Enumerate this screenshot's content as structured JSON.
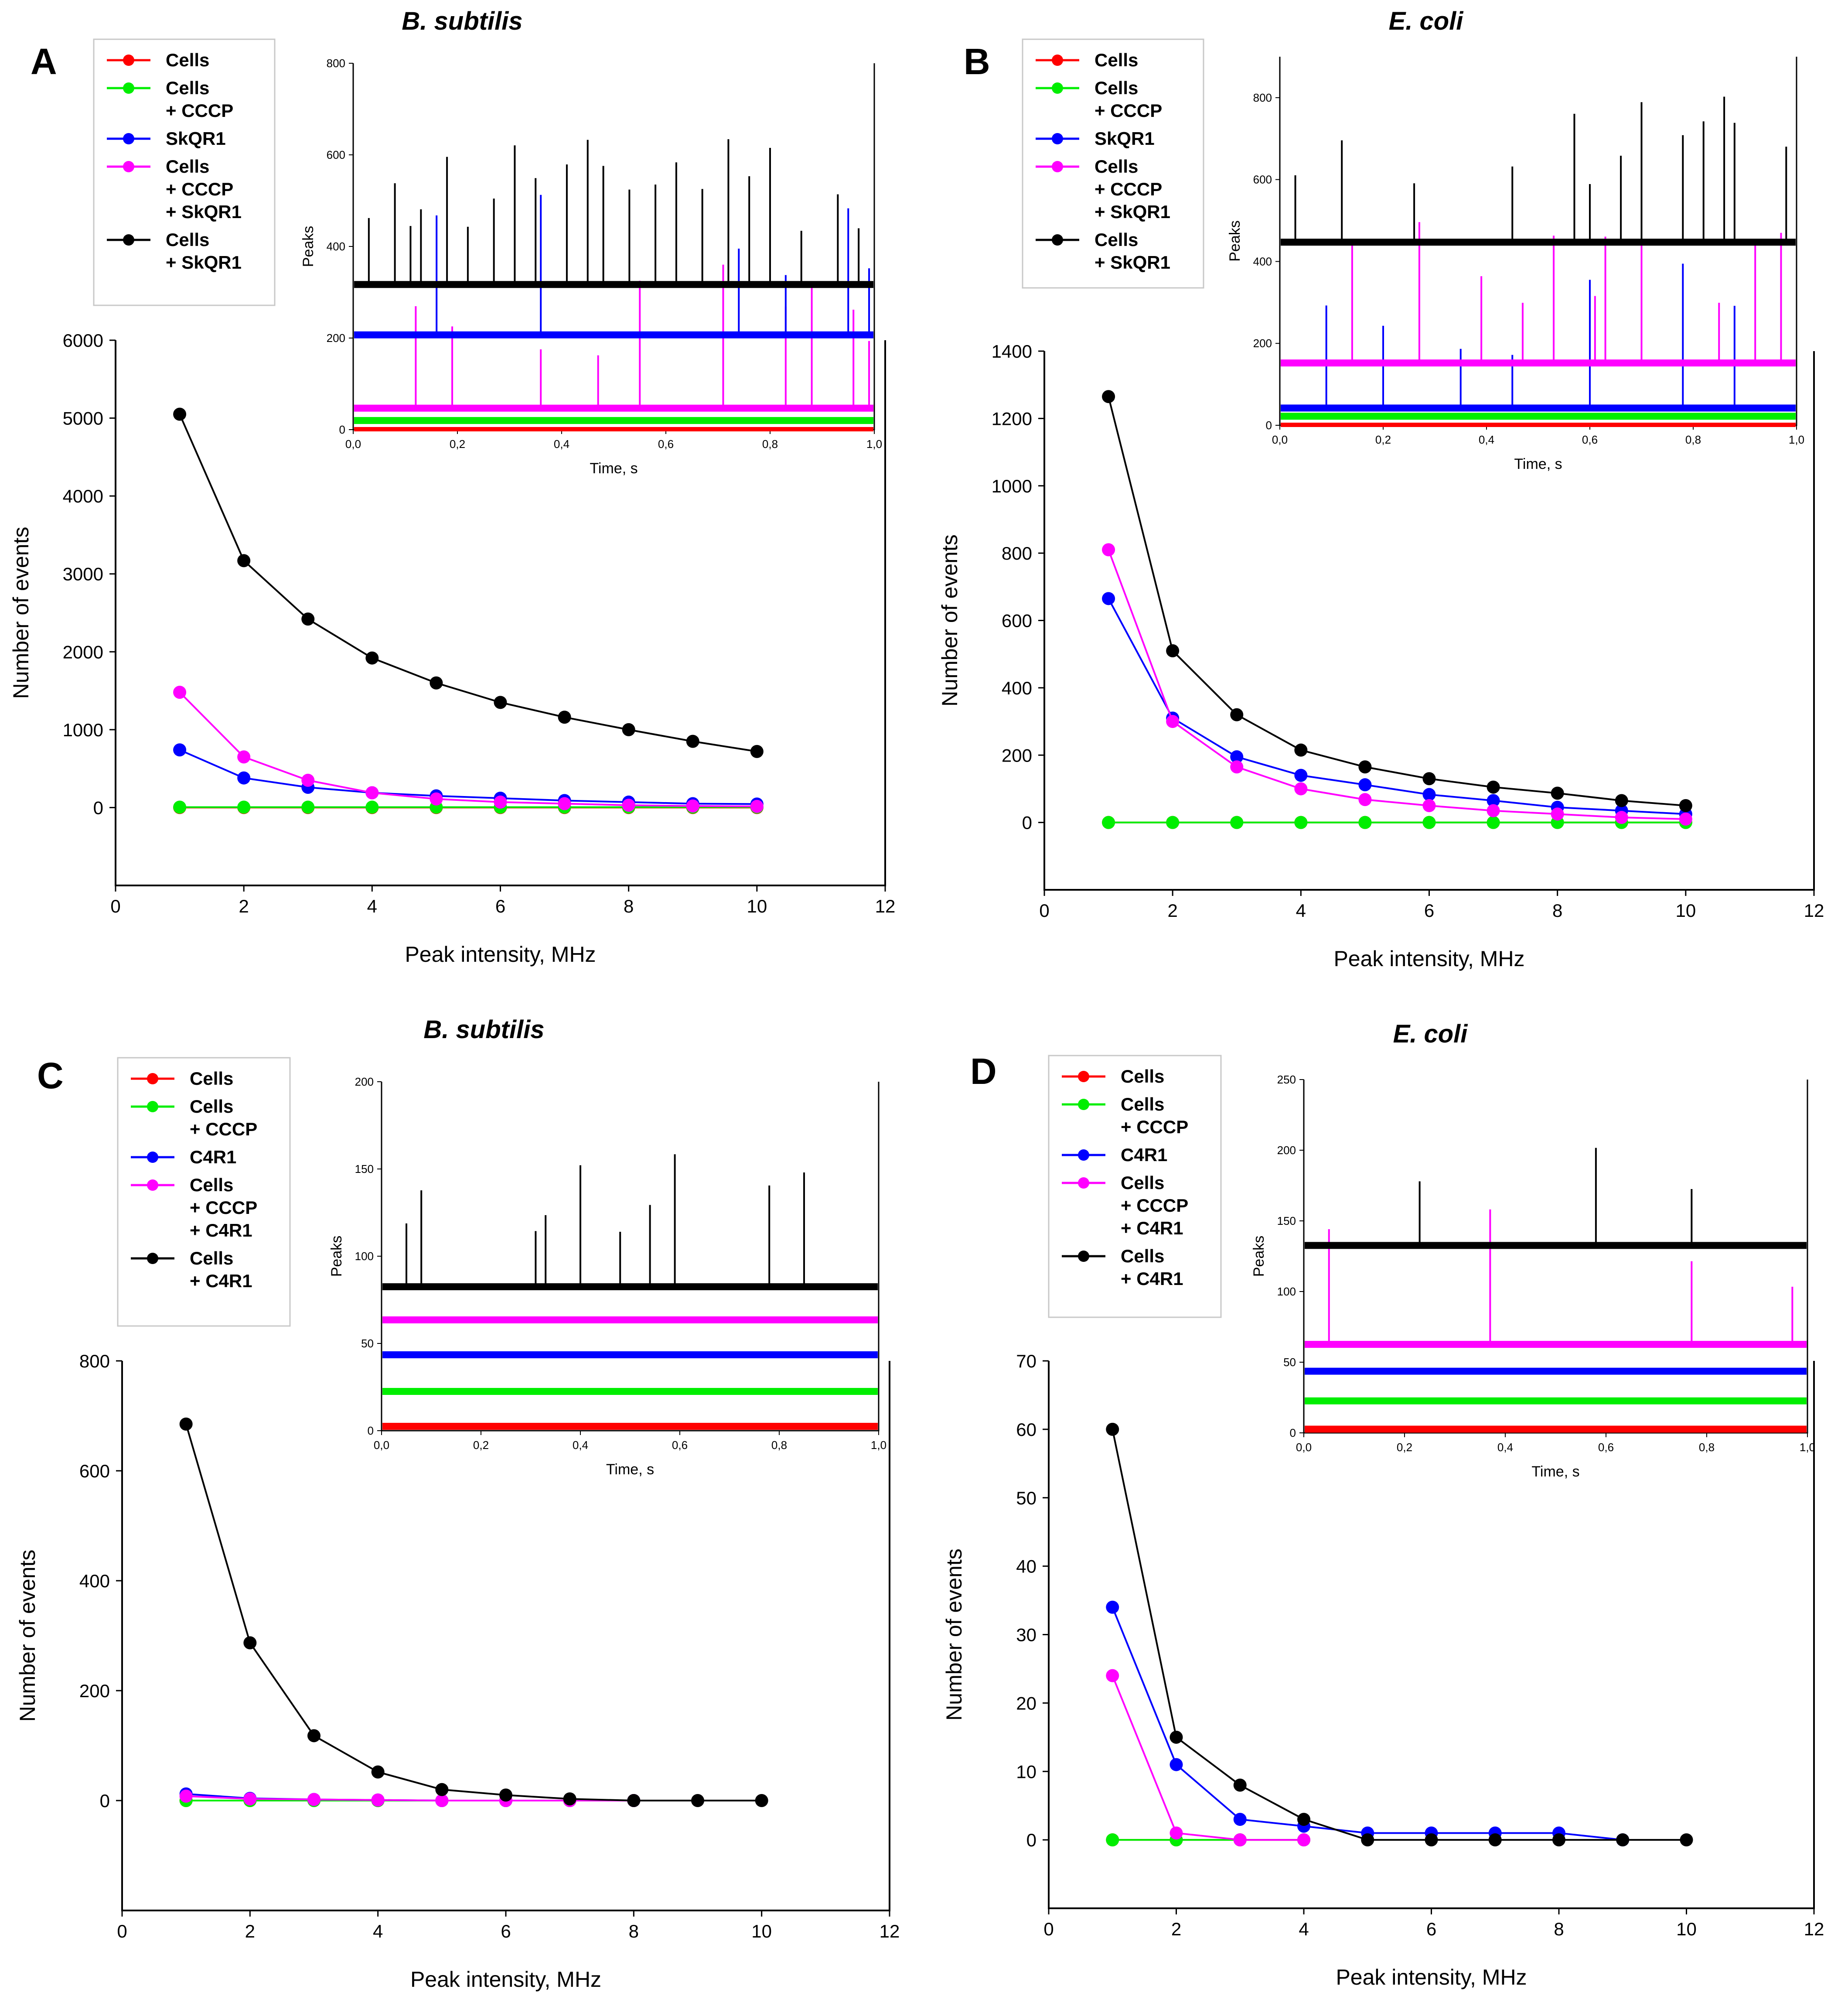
{
  "chart_data": [
    {
      "panel_label": "A",
      "title": "B. subtilis",
      "type": "line",
      "xlabel": "Peak intensity, MHz",
      "ylabel": "Number of events",
      "xlim": [
        0,
        12
      ],
      "ylim": [
        -1000,
        6000
      ],
      "xticks": [
        "0",
        "2",
        "4",
        "6",
        "8",
        "10",
        "12"
      ],
      "yticks": [
        "0",
        "1000",
        "2000",
        "3000",
        "4000",
        "5000",
        "6000"
      ],
      "legend": [
        "Cells",
        "Cells\n+ CCCP",
        "SkQR1",
        "Cells\n+ CCCP\n+ SkQR1",
        "Cells\n+ SkQR1"
      ],
      "series": [
        {
          "name": "Cells",
          "color": "#ff0000",
          "x": [
            1,
            2,
            3,
            4,
            5,
            6,
            7,
            8,
            9,
            10
          ],
          "values": [
            0,
            0,
            0,
            0,
            0,
            0,
            0,
            0,
            0,
            0
          ]
        },
        {
          "name": "Cells + CCCP",
          "color": "#00ee00",
          "x": [
            1,
            2,
            3,
            4,
            5,
            6,
            7,
            8,
            9,
            10
          ],
          "values": [
            5,
            5,
            5,
            5,
            5,
            5,
            5,
            5,
            5,
            5
          ]
        },
        {
          "name": "SkQR1",
          "color": "#0000ff",
          "x": [
            1,
            2,
            3,
            4,
            5,
            6,
            7,
            8,
            9,
            10
          ],
          "values": [
            740,
            380,
            260,
            190,
            150,
            120,
            90,
            70,
            50,
            45
          ]
        },
        {
          "name": "Cells + CCCP + SkQR1",
          "color": "#ff00ff",
          "x": [
            1,
            2,
            3,
            4,
            5,
            6,
            7,
            8,
            9,
            10
          ],
          "values": [
            1480,
            650,
            350,
            190,
            110,
            70,
            50,
            30,
            20,
            15
          ]
        },
        {
          "name": "Cells + SkQR1",
          "color": "#000000",
          "x": [
            1,
            2,
            3,
            4,
            5,
            6,
            7,
            8,
            9,
            10
          ],
          "values": [
            5050,
            3170,
            2420,
            1920,
            1600,
            1350,
            1160,
            1000,
            850,
            720
          ]
        }
      ],
      "inset": {
        "xlabel": "Time, s",
        "ylabel": "Peaks",
        "xlim": [
          0,
          1
        ],
        "ylim": [
          0,
          800
        ],
        "xticks": [
          "0,0",
          "0,2",
          "0,4",
          "0,6",
          "0,8",
          "1,0"
        ],
        "yticks": [
          "0",
          "200",
          "400",
          "600",
          "800"
        ],
        "traces": [
          {
            "name": "Cells",
            "color": "#ff0000",
            "baseline": 0,
            "spikes": []
          },
          {
            "name": "Cells + CCCP",
            "color": "#00ee00",
            "baseline": 18,
            "spikes": []
          },
          {
            "name": "Cells + CCCP + SkQR1",
            "color": "#ff00ff",
            "baseline": 45,
            "spikes": [
              0.12,
              0.19,
              0.36,
              0.47,
              0.55,
              0.71,
              0.83,
              0.88,
              0.96,
              0.99
            ]
          },
          {
            "name": "SkQR1",
            "color": "#0000ff",
            "baseline": 205,
            "spikes": [
              0.16,
              0.36,
              0.74,
              0.83,
              0.95,
              0.99
            ]
          },
          {
            "name": "Cells + SkQR1",
            "color": "#000000",
            "baseline": 315,
            "spikes": [
              0.03,
              0.08,
              0.11,
              0.13,
              0.18,
              0.22,
              0.27,
              0.31,
              0.35,
              0.41,
              0.45,
              0.48,
              0.53,
              0.58,
              0.62,
              0.67,
              0.72,
              0.76,
              0.8,
              0.86,
              0.93,
              0.97
            ]
          }
        ]
      }
    },
    {
      "panel_label": "B",
      "title": "E. coli",
      "type": "line",
      "xlabel": "Peak intensity, MHz",
      "ylabel": "Number of events",
      "xlim": [
        0,
        12
      ],
      "ylim": [
        -200,
        1400
      ],
      "xticks": [
        "0",
        "2",
        "4",
        "6",
        "8",
        "10",
        "12"
      ],
      "yticks": [
        "0",
        "200",
        "400",
        "600",
        "800",
        "1000",
        "1200",
        "1400"
      ],
      "legend": [
        "Cells",
        "Cells\n+ CCCP",
        "SkQR1",
        "Cells\n+ CCCP\n+ SkQR1",
        "Cells\n+ SkQR1"
      ],
      "series": [
        {
          "name": "Cells",
          "color": "#ff0000",
          "x": [
            1,
            2,
            3,
            4,
            5,
            6,
            7,
            8,
            9,
            10
          ],
          "values": [
            0,
            0,
            0,
            0,
            0,
            0,
            0,
            0,
            0,
            0
          ]
        },
        {
          "name": "Cells + CCCP",
          "color": "#00ee00",
          "x": [
            1,
            2,
            3,
            4,
            5,
            6,
            7,
            8,
            9,
            10
          ],
          "values": [
            0,
            0,
            0,
            0,
            0,
            0,
            0,
            0,
            0,
            0
          ]
        },
        {
          "name": "SkQR1",
          "color": "#0000ff",
          "x": [
            1,
            2,
            3,
            4,
            5,
            6,
            7,
            8,
            9,
            10
          ],
          "values": [
            665,
            310,
            195,
            140,
            112,
            83,
            65,
            45,
            35,
            25
          ]
        },
        {
          "name": "Cells + CCCP + SkQR1",
          "color": "#ff00ff",
          "x": [
            1,
            2,
            3,
            4,
            5,
            6,
            7,
            8,
            9,
            10
          ],
          "values": [
            810,
            300,
            165,
            100,
            68,
            50,
            35,
            25,
            15,
            10
          ]
        },
        {
          "name": "Cells + SkQR1",
          "color": "#000000",
          "x": [
            1,
            2,
            3,
            4,
            5,
            6,
            7,
            8,
            9,
            10
          ],
          "values": [
            1265,
            510,
            320,
            215,
            165,
            130,
            105,
            87,
            65,
            50
          ]
        }
      ],
      "inset": {
        "xlabel": "Time, s",
        "ylabel": "Peaks",
        "xlim": [
          0,
          1
        ],
        "ylim": [
          0,
          900
        ],
        "xticks": [
          "0,0",
          "0,2",
          "0,4",
          "0,6",
          "0,8",
          "1,0"
        ],
        "yticks": [
          "0",
          "200",
          "400",
          "600",
          "800"
        ],
        "traces": [
          {
            "name": "Cells",
            "color": "#ff0000",
            "baseline": 0,
            "spikes": []
          },
          {
            "name": "Cells + CCCP",
            "color": "#00ee00",
            "baseline": 20,
            "spikes": []
          },
          {
            "name": "SkQR1",
            "color": "#0000ff",
            "baseline": 40,
            "spikes": [
              0.09,
              0.2,
              0.35,
              0.45,
              0.6,
              0.78,
              0.88
            ]
          },
          {
            "name": "Cells + CCCP + SkQR1",
            "color": "#ff00ff",
            "baseline": 150,
            "spikes": [
              0.14,
              0.27,
              0.39,
              0.47,
              0.53,
              0.61,
              0.63,
              0.7,
              0.85,
              0.92,
              0.97
            ]
          },
          {
            "name": "Cells + SkQR1",
            "color": "#000000",
            "baseline": 445,
            "spikes": [
              0.03,
              0.12,
              0.26,
              0.45,
              0.57,
              0.6,
              0.66,
              0.7,
              0.78,
              0.82,
              0.86,
              0.88,
              0.98
            ]
          }
        ]
      }
    },
    {
      "panel_label": "C",
      "title": "B. subtilis",
      "type": "line",
      "xlabel": "Peak intensity, MHz",
      "ylabel": "Number of events",
      "xlim": [
        0,
        12
      ],
      "ylim": [
        -200,
        800
      ],
      "xticks": [
        "0",
        "2",
        "4",
        "6",
        "8",
        "10",
        "12"
      ],
      "yticks": [
        "0",
        "200",
        "400",
        "600",
        "800"
      ],
      "legend": [
        "Cells",
        "Cells\n+ CCCP",
        "C4R1",
        "Cells\n+ CCCP\n+ C4R1",
        "Cells\n+ C4R1"
      ],
      "series": [
        {
          "name": "Cells",
          "color": "#ff0000",
          "x": [
            1,
            2,
            3,
            4,
            5,
            6,
            7,
            8
          ],
          "values": [
            0,
            0,
            0,
            0,
            0,
            0,
            0,
            0
          ]
        },
        {
          "name": "Cells + CCCP",
          "color": "#00ee00",
          "x": [
            1,
            2,
            3,
            4,
            5,
            6,
            7,
            8
          ],
          "values": [
            0,
            0,
            0,
            0,
            0,
            0,
            0,
            0
          ]
        },
        {
          "name": "C4R1",
          "color": "#0000ff",
          "x": [
            1,
            2,
            3,
            4,
            5,
            6,
            7,
            8
          ],
          "values": [
            12,
            4,
            2,
            1,
            0,
            0,
            0,
            0
          ]
        },
        {
          "name": "Cells + CCCP + C4R1",
          "color": "#ff00ff",
          "x": [
            1,
            2,
            3,
            4,
            5,
            6,
            7,
            8
          ],
          "values": [
            8,
            3,
            2,
            1,
            0,
            0,
            0,
            0
          ]
        },
        {
          "name": "Cells + C4R1",
          "color": "#000000",
          "x": [
            1,
            2,
            3,
            4,
            5,
            6,
            7,
            8,
            9,
            10
          ],
          "values": [
            685,
            287,
            118,
            52,
            20,
            10,
            3,
            0,
            0,
            0
          ]
        }
      ],
      "inset": {
        "xlabel": "Time, s",
        "ylabel": "Peaks",
        "xlim": [
          0,
          1
        ],
        "ylim": [
          0,
          200
        ],
        "xticks": [
          "0,0",
          "0,2",
          "0,4",
          "0,6",
          "0,8",
          "1,0"
        ],
        "yticks": [
          "0",
          "50",
          "100",
          "150",
          "200"
        ],
        "traces": [
          {
            "name": "Cells",
            "color": "#ff0000",
            "baseline": 2,
            "spikes": []
          },
          {
            "name": "Cells + CCCP",
            "color": "#00ee00",
            "baseline": 22,
            "spikes": []
          },
          {
            "name": "C4R1",
            "color": "#0000ff",
            "baseline": 43,
            "spikes": []
          },
          {
            "name": "Cells + CCCP + C4R1",
            "color": "#ff00ff",
            "baseline": 63,
            "spikes": []
          },
          {
            "name": "Cells + C4R1",
            "color": "#000000",
            "baseline": 82,
            "spikes": [
              0.05,
              0.08,
              0.31,
              0.33,
              0.4,
              0.48,
              0.54,
              0.59,
              0.78,
              0.85
            ]
          }
        ]
      }
    },
    {
      "panel_label": "D",
      "title": "E. coli",
      "type": "line",
      "xlabel": "Peak intensity, MHz",
      "ylabel": "Number of events",
      "xlim": [
        0,
        12
      ],
      "ylim": [
        -10,
        70
      ],
      "xticks": [
        "0",
        "2",
        "4",
        "6",
        "8",
        "10",
        "12"
      ],
      "yticks": [
        "0",
        "10",
        "20",
        "30",
        "40",
        "50",
        "60",
        "70"
      ],
      "legend": [
        "Cells",
        "Cells\n+ CCCP",
        "C4R1",
        "Cells\n+ CCCP\n+ C4R1",
        "Cells\n+ C4R1"
      ],
      "series": [
        {
          "name": "Cells",
          "color": "#ff0000",
          "x": [
            1,
            2,
            3,
            4
          ],
          "values": [
            0,
            0,
            0,
            0
          ]
        },
        {
          "name": "Cells + CCCP",
          "color": "#00ee00",
          "x": [
            1,
            2,
            3,
            4
          ],
          "values": [
            0,
            0,
            0,
            0
          ]
        },
        {
          "name": "C4R1",
          "color": "#0000ff",
          "x": [
            1,
            2,
            3,
            4,
            5,
            6,
            7,
            8,
            9
          ],
          "values": [
            34,
            11,
            3,
            2,
            1,
            1,
            1,
            1,
            0
          ]
        },
        {
          "name": "Cells + CCCP + C4R1",
          "color": "#ff00ff",
          "x": [
            1,
            2,
            3,
            4
          ],
          "values": [
            24,
            1,
            0,
            0
          ]
        },
        {
          "name": "Cells + C4R1",
          "color": "#000000",
          "x": [
            1,
            2,
            3,
            4,
            5,
            6,
            7,
            8,
            9,
            10
          ],
          "values": [
            60,
            15,
            8,
            3,
            0,
            0,
            0,
            0,
            0,
            0
          ]
        }
      ],
      "inset": {
        "xlabel": "Time, s",
        "ylabel": "Peaks",
        "xlim": [
          0,
          1
        ],
        "ylim": [
          0,
          250
        ],
        "xticks": [
          "0,0",
          "0,2",
          "0,4",
          "0,6",
          "0,8",
          "1,0"
        ],
        "yticks": [
          "0",
          "50",
          "100",
          "150",
          "200",
          "250"
        ],
        "traces": [
          {
            "name": "Cells",
            "color": "#ff0000",
            "baseline": 2,
            "spikes": []
          },
          {
            "name": "Cells + CCCP",
            "color": "#00ee00",
            "baseline": 22,
            "spikes": []
          },
          {
            "name": "C4R1",
            "color": "#0000ff",
            "baseline": 43,
            "spikes": []
          },
          {
            "name": "Cells + CCCP + C4R1",
            "color": "#ff00ff",
            "baseline": 62,
            "spikes": [
              0.05,
              0.37,
              0.77,
              0.97
            ]
          },
          {
            "name": "Cells + C4R1",
            "color": "#000000",
            "baseline": 132,
            "spikes": [
              0.23,
              0.58,
              0.77
            ]
          }
        ]
      }
    }
  ]
}
